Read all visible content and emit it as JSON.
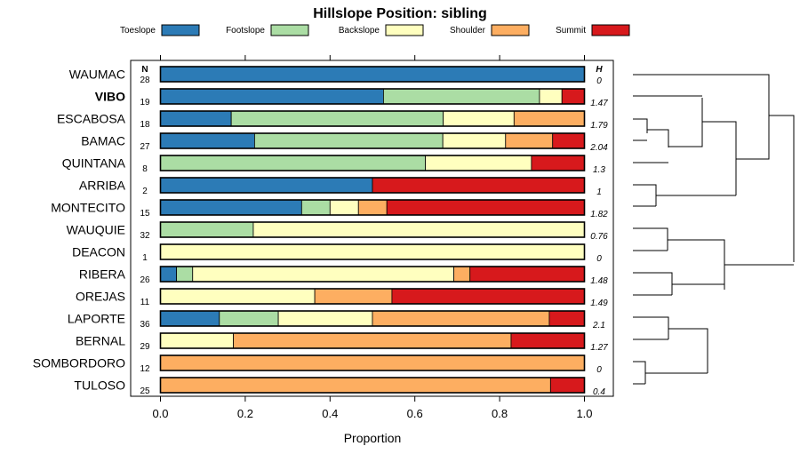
{
  "chart_data": {
    "type": "bar",
    "stacked": true,
    "orientation": "horizontal",
    "title": "Hillslope Position: sibling",
    "xlabel": "Proportion",
    "xlim": [
      0,
      1
    ],
    "xticks": [
      "0.0",
      "0.2",
      "0.4",
      "0.6",
      "0.8",
      "1.0"
    ],
    "n_header": "N",
    "h_header": "H",
    "legend": [
      {
        "name": "Toeslope",
        "color": "#2c7bb6"
      },
      {
        "name": "Footslope",
        "color": "#abdda4"
      },
      {
        "name": "Backslope",
        "color": "#ffffbf"
      },
      {
        "name": "Shoulder",
        "color": "#fdae61"
      },
      {
        "name": "Summit",
        "color": "#d7191c"
      }
    ],
    "rows": [
      {
        "name": "WAUMAC",
        "n": "28",
        "h": "0",
        "bold": false,
        "values": [
          1.0,
          0,
          0,
          0,
          0
        ]
      },
      {
        "name": "VIBO",
        "n": "19",
        "h": "1.47",
        "bold": true,
        "values": [
          0.526,
          0.368,
          0.053,
          0,
          0.053
        ]
      },
      {
        "name": "ESCABOSA",
        "n": "18",
        "h": "1.79",
        "bold": false,
        "values": [
          0.167,
          0.5,
          0.167,
          0.166,
          0
        ]
      },
      {
        "name": "BAMAC",
        "n": "27",
        "h": "2.04",
        "bold": false,
        "values": [
          0.222,
          0.444,
          0.148,
          0.111,
          0.075
        ]
      },
      {
        "name": "QUINTANA",
        "n": "8",
        "h": "1.3",
        "bold": false,
        "values": [
          0,
          0.625,
          0.25,
          0,
          0.125
        ]
      },
      {
        "name": "ARRIBA",
        "n": "2",
        "h": "1",
        "bold": false,
        "values": [
          0.5,
          0,
          0,
          0,
          0.5
        ]
      },
      {
        "name": "MONTECITO",
        "n": "15",
        "h": "1.82",
        "bold": false,
        "values": [
          0.333,
          0.067,
          0.067,
          0.067,
          0.466
        ]
      },
      {
        "name": "WAUQUIE",
        "n": "32",
        "h": "0.76",
        "bold": false,
        "values": [
          0,
          0.219,
          0.781,
          0,
          0
        ]
      },
      {
        "name": "DEACON",
        "n": "1",
        "h": "0",
        "bold": false,
        "values": [
          0,
          0,
          1.0,
          0,
          0
        ]
      },
      {
        "name": "RIBERA",
        "n": "26",
        "h": "1.48",
        "bold": false,
        "values": [
          0.038,
          0.038,
          0.616,
          0.038,
          0.27
        ]
      },
      {
        "name": "OREJAS",
        "n": "11",
        "h": "1.49",
        "bold": false,
        "values": [
          0,
          0,
          0.364,
          0.182,
          0.454
        ]
      },
      {
        "name": "LAPORTE",
        "n": "36",
        "h": "2.1",
        "bold": false,
        "values": [
          0.139,
          0.139,
          0.222,
          0.417,
          0.083
        ]
      },
      {
        "name": "BERNAL",
        "n": "29",
        "h": "1.27",
        "bold": false,
        "values": [
          0,
          0,
          0.172,
          0.655,
          0.173
        ]
      },
      {
        "name": "SOMBORDORO",
        "n": "12",
        "h": "0",
        "bold": false,
        "values": [
          0,
          0,
          0,
          1.0,
          0
        ]
      },
      {
        "name": "TULOSO",
        "n": "25",
        "h": "0.4",
        "bold": false,
        "values": [
          0,
          0,
          0,
          0.92,
          0.08
        ]
      }
    ]
  }
}
